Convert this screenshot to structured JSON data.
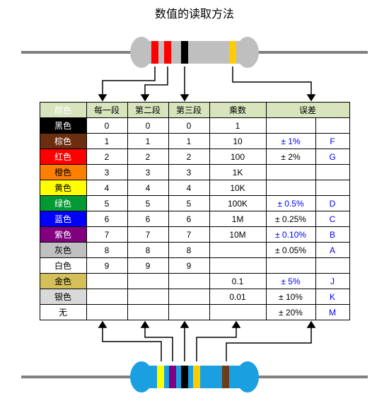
{
  "title": "数值的读取方法",
  "table": {
    "headers": [
      "颜色",
      "每一段",
      "第二段",
      "第三段",
      "乘数",
      "误差"
    ],
    "rows": [
      {
        "name": "黑色",
        "bg": "#000000",
        "fg": "#ffffff",
        "d1": "0",
        "d2": "0",
        "d3": "0",
        "mult": "1",
        "tol": "",
        "tol_color": "#000000",
        "letter": ""
      },
      {
        "name": "棕色",
        "bg": "#6b2e0e",
        "fg": "#ffffff",
        "d1": "1",
        "d2": "1",
        "d3": "1",
        "mult": "10",
        "tol": "± 1%",
        "tol_color": "#0000ff",
        "letter": "F"
      },
      {
        "name": "红色",
        "bg": "#ff0000",
        "fg": "#ffffff",
        "d1": "2",
        "d2": "2",
        "d3": "2",
        "mult": "100",
        "tol": "± 2%",
        "tol_color": "#000000",
        "letter": "G"
      },
      {
        "name": "橙色",
        "bg": "#ff8000",
        "fg": "#000000",
        "d1": "3",
        "d2": "3",
        "d3": "3",
        "mult": "1K",
        "tol": "",
        "tol_color": "#000000",
        "letter": ""
      },
      {
        "name": "黄色",
        "bg": "#ffff00",
        "fg": "#000000",
        "d1": "4",
        "d2": "4",
        "d3": "4",
        "mult": "10K",
        "tol": "",
        "tol_color": "#000000",
        "letter": ""
      },
      {
        "name": "绿色",
        "bg": "#009933",
        "fg": "#ffffff",
        "d1": "5",
        "d2": "5",
        "d3": "5",
        "mult": "100K",
        "tol": "± 0.5%",
        "tol_color": "#0000ff",
        "letter": "D"
      },
      {
        "name": "蓝色",
        "bg": "#0000ff",
        "fg": "#ffffff",
        "d1": "6",
        "d2": "6",
        "d3": "6",
        "mult": "1M",
        "tol": "± 0.25%",
        "tol_color": "#000000",
        "letter": "C"
      },
      {
        "name": "紫色",
        "bg": "#800080",
        "fg": "#ffffff",
        "d1": "7",
        "d2": "7",
        "d3": "7",
        "mult": "10M",
        "tol": "± 0.10%",
        "tol_color": "#0000ff",
        "letter": "B"
      },
      {
        "name": "灰色",
        "bg": "#c0c0c0",
        "fg": "#000000",
        "d1": "8",
        "d2": "8",
        "d3": "8",
        "mult": "",
        "tol": "± 0.05%",
        "tol_color": "#000000",
        "letter": "A"
      },
      {
        "name": "白色",
        "bg": "#ffffff",
        "fg": "#000000",
        "d1": "9",
        "d2": "9",
        "d3": "9",
        "mult": "",
        "tol": "",
        "tol_color": "#000000",
        "letter": ""
      },
      {
        "name": "金色",
        "bg": "#d4c05a",
        "fg": "#000000",
        "d1": "",
        "d2": "",
        "d3": "",
        "mult": "0.1",
        "tol": "± 5%",
        "tol_color": "#0000ff",
        "letter": "J"
      },
      {
        "name": "银色",
        "bg": "#d9d9d9",
        "fg": "#000000",
        "d1": "",
        "d2": "",
        "d3": "",
        "mult": "0.01",
        "tol": "± 10%",
        "tol_color": "#000000",
        "letter": "K"
      },
      {
        "name": "无",
        "bg": "#ffffff",
        "fg": "#000000",
        "d1": "",
        "d2": "",
        "d3": "",
        "mult": "",
        "tol": "± 20%",
        "tol_color": "#000000",
        "letter": "M"
      }
    ],
    "col_widths": {
      "color": 66,
      "digit": 58,
      "mult": 80,
      "tol": 70,
      "letter": 48
    },
    "header_bg": "#d7e4bd",
    "letter_color": "#0000ff"
  },
  "resistor_top": {
    "body_color": "#bfbfbf",
    "lead_color": "#808080",
    "stripes": [
      {
        "fill": "#ff0000"
      },
      {
        "fill": "#ff0000"
      },
      {
        "fill": "#000000"
      },
      {
        "fill": "#ffcc00"
      }
    ]
  },
  "resistor_bottom": {
    "body_color": "#1aa0e0",
    "lead_color": "#808080",
    "stripes": [
      {
        "fill": "#ffff00"
      },
      {
        "fill": "#800080"
      },
      {
        "fill": "#000000"
      },
      {
        "fill": "#ffcc00"
      },
      {
        "fill": "#6b3e1a"
      }
    ]
  },
  "arrows": {
    "color": "#000000",
    "top_count": 4,
    "bottom_count": 5
  }
}
